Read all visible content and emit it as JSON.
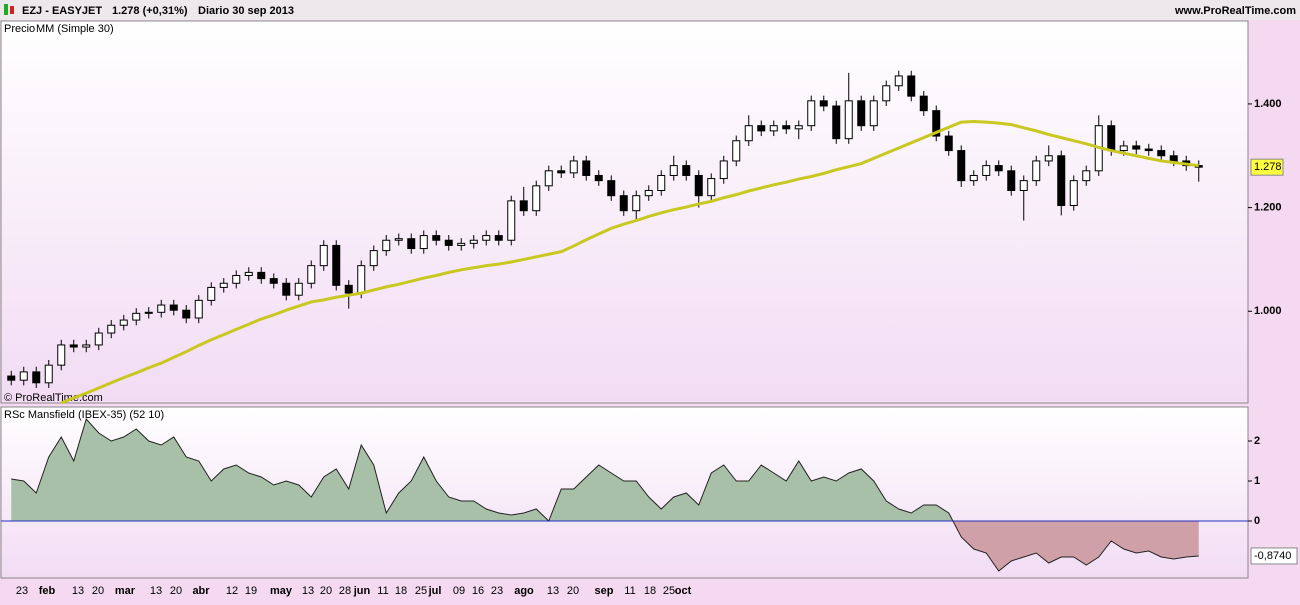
{
  "header": {
    "symbol": "EZJ - EASYJET",
    "quote": "1.278 (+0,31%)",
    "period": "Diario  30 sep 2013",
    "site": "www.ProRealTime.com",
    "copyright": "© ProRealTime.com"
  },
  "chart_data": [
    {
      "type": "candlestick",
      "legend_label": "Precio",
      "open": [
        0.875,
        0.867,
        0.883,
        0.862,
        0.896,
        0.935,
        0.931,
        0.935,
        0.958,
        0.973,
        0.983,
        0.996,
        0.998,
        1.012,
        1.002,
        0.987,
        1.021,
        1.046,
        1.054,
        1.069,
        1.075,
        1.063,
        1.054,
        1.031,
        1.054,
        1.088,
        1.127,
        1.05,
        1.035,
        1.088,
        1.117,
        1.137,
        1.14,
        1.121,
        1.146,
        1.137,
        1.127,
        1.131,
        1.137,
        1.146,
        1.137,
        1.213,
        1.194,
        1.242,
        1.271,
        1.267,
        1.29,
        1.262,
        1.252,
        1.223,
        1.194,
        1.223,
        1.233,
        1.262,
        1.281,
        1.262,
        1.223,
        1.256,
        1.29,
        1.329,
        1.358,
        1.348,
        1.358,
        1.352,
        1.358,
        1.406,
        1.396,
        1.333,
        1.406,
        1.358,
        1.406,
        1.435,
        1.454,
        1.415,
        1.387,
        1.338,
        1.31,
        1.252,
        1.262,
        1.281,
        1.271,
        1.233,
        1.252,
        1.29,
        1.3,
        1.204,
        1.252,
        1.271,
        1.358,
        1.31,
        1.319,
        1.313,
        1.31,
        1.3,
        1.29,
        1.281
      ],
      "high": [
        0.885,
        0.893,
        0.893,
        0.906,
        0.945,
        0.945,
        0.945,
        0.968,
        0.983,
        0.993,
        1.006,
        1.008,
        1.022,
        1.022,
        1.012,
        1.031,
        1.056,
        1.064,
        1.079,
        1.085,
        1.085,
        1.073,
        1.064,
        1.064,
        1.098,
        1.137,
        1.137,
        1.06,
        1.098,
        1.127,
        1.147,
        1.15,
        1.15,
        1.156,
        1.156,
        1.147,
        1.141,
        1.147,
        1.156,
        1.156,
        1.223,
        1.24,
        1.252,
        1.281,
        1.281,
        1.3,
        1.3,
        1.272,
        1.262,
        1.233,
        1.233,
        1.243,
        1.272,
        1.3,
        1.291,
        1.272,
        1.266,
        1.3,
        1.339,
        1.378,
        1.368,
        1.368,
        1.368,
        1.368,
        1.416,
        1.416,
        1.406,
        1.46,
        1.416,
        1.416,
        1.445,
        1.464,
        1.464,
        1.425,
        1.397,
        1.348,
        1.32,
        1.272,
        1.291,
        1.291,
        1.281,
        1.262,
        1.3,
        1.32,
        1.31,
        1.262,
        1.281,
        1.378,
        1.368,
        1.329,
        1.329,
        1.323,
        1.32,
        1.31,
        1.3,
        1.291
      ],
      "low": [
        0.857,
        0.857,
        0.852,
        0.852,
        0.886,
        0.921,
        0.921,
        0.925,
        0.948,
        0.963,
        0.973,
        0.986,
        0.988,
        0.992,
        0.977,
        0.977,
        1.011,
        1.036,
        1.044,
        1.059,
        1.053,
        1.044,
        1.021,
        1.021,
        1.044,
        1.078,
        1.04,
        1.005,
        1.025,
        1.078,
        1.107,
        1.127,
        1.111,
        1.111,
        1.127,
        1.117,
        1.117,
        1.121,
        1.127,
        1.127,
        1.127,
        1.184,
        1.184,
        1.232,
        1.257,
        1.257,
        1.252,
        1.242,
        1.213,
        1.184,
        1.175,
        1.213,
        1.223,
        1.252,
        1.252,
        1.2,
        1.213,
        1.246,
        1.28,
        1.319,
        1.338,
        1.338,
        1.342,
        1.332,
        1.348,
        1.386,
        1.323,
        1.323,
        1.348,
        1.348,
        1.396,
        1.425,
        1.405,
        1.377,
        1.328,
        1.3,
        1.24,
        1.242,
        1.252,
        1.261,
        1.223,
        1.175,
        1.242,
        1.28,
        1.185,
        1.194,
        1.242,
        1.261,
        1.3,
        1.3,
        1.303,
        1.3,
        1.29,
        1.28,
        1.271,
        1.25
      ],
      "close": [
        0.867,
        0.883,
        0.862,
        0.896,
        0.935,
        0.931,
        0.935,
        0.958,
        0.973,
        0.983,
        0.996,
        0.998,
        1.012,
        1.002,
        0.987,
        1.021,
        1.046,
        1.054,
        1.069,
        1.075,
        1.063,
        1.054,
        1.031,
        1.054,
        1.088,
        1.127,
        1.05,
        1.035,
        1.088,
        1.117,
        1.137,
        1.14,
        1.121,
        1.146,
        1.137,
        1.127,
        1.131,
        1.137,
        1.146,
        1.137,
        1.213,
        1.194,
        1.242,
        1.271,
        1.267,
        1.29,
        1.262,
        1.252,
        1.223,
        1.194,
        1.223,
        1.233,
        1.262,
        1.281,
        1.262,
        1.223,
        1.256,
        1.29,
        1.329,
        1.358,
        1.348,
        1.358,
        1.352,
        1.358,
        1.406,
        1.396,
        1.333,
        1.406,
        1.358,
        1.406,
        1.435,
        1.454,
        1.415,
        1.387,
        1.338,
        1.31,
        1.252,
        1.262,
        1.281,
        1.271,
        1.233,
        1.252,
        1.29,
        1.3,
        1.204,
        1.252,
        1.271,
        1.358,
        1.31,
        1.319,
        1.313,
        1.31,
        1.3,
        1.29,
        1.281,
        1.278
      ],
      "last_value": 1.278,
      "last_label": "1.278",
      "series": [
        {
          "name": "MM (Simple 30)",
          "color": "#c8c820",
          "values": [
            null,
            null,
            null,
            null,
            0.823,
            0.833,
            0.842,
            0.852,
            0.862,
            0.872,
            0.881,
            0.891,
            0.9,
            0.911,
            0.922,
            0.934,
            0.945,
            0.955,
            0.965,
            0.975,
            0.985,
            0.993,
            1.002,
            1.01,
            1.018,
            1.022,
            1.027,
            1.031,
            1.035,
            1.041,
            1.047,
            1.052,
            1.058,
            1.064,
            1.069,
            1.075,
            1.08,
            1.084,
            1.088,
            1.091,
            1.095,
            1.1,
            1.105,
            1.11,
            1.115,
            1.126,
            1.138,
            1.149,
            1.16,
            1.168,
            1.175,
            1.183,
            1.19,
            1.196,
            1.201,
            1.207,
            1.212,
            1.219,
            1.225,
            1.232,
            1.238,
            1.244,
            1.249,
            1.255,
            1.26,
            1.266,
            1.273,
            1.279,
            1.285,
            1.295,
            1.305,
            1.315,
            1.325,
            1.335,
            1.345,
            1.355,
            1.365,
            1.366,
            1.365,
            1.363,
            1.36,
            1.354,
            1.348,
            1.341,
            1.335,
            1.329,
            1.323,
            1.316,
            1.31,
            1.305,
            1.3,
            1.295,
            1.29,
            1.287,
            1.284,
            1.281
          ]
        }
      ],
      "ylim": [
        0.823,
        1.56
      ],
      "yticks": [
        {
          "value": 1.0,
          "label": "1.000"
        },
        {
          "value": 1.2,
          "label": "1.200"
        },
        {
          "value": 1.4,
          "label": "1.400"
        }
      ]
    },
    {
      "type": "area",
      "title": "RSc Mansfield (IBEX-35) (52 10)",
      "series": [
        {
          "name": "RSc Mansfield",
          "color": "#a8c0a8",
          "negative_color": "#d0a0a8",
          "values": [
            1.05,
            1.0,
            0.7,
            1.6,
            2.1,
            1.5,
            2.55,
            2.2,
            2.0,
            2.1,
            2.3,
            2.0,
            1.9,
            2.1,
            1.6,
            1.5,
            1.0,
            1.3,
            1.4,
            1.2,
            1.1,
            0.9,
            1.0,
            0.9,
            0.6,
            1.1,
            1.3,
            0.8,
            1.9,
            1.4,
            0.2,
            0.7,
            1.0,
            1.6,
            1.0,
            0.6,
            0.5,
            0.5,
            0.3,
            0.2,
            0.15,
            0.2,
            0.3,
            0.0,
            0.8,
            0.8,
            1.1,
            1.4,
            1.2,
            1.0,
            1.0,
            0.6,
            0.3,
            0.6,
            0.7,
            0.4,
            1.2,
            1.4,
            1.0,
            1.0,
            1.4,
            1.2,
            1.0,
            1.5,
            1.0,
            1.1,
            1.0,
            1.2,
            1.3,
            1.0,
            0.5,
            0.3,
            0.2,
            0.4,
            0.4,
            0.2,
            -0.4,
            -0.7,
            -0.8,
            -1.25,
            -1.0,
            -0.9,
            -0.8,
            -1.05,
            -0.9,
            -0.9,
            -1.1,
            -0.9,
            -0.5,
            -0.7,
            -0.8,
            -0.75,
            -0.9,
            -0.95,
            -0.9,
            -0.874
          ]
        }
      ],
      "last_value": -0.874,
      "last_label": "-0,8740",
      "ylim": [
        -1.425,
        2.85
      ],
      "yticks": [
        0,
        1,
        2
      ],
      "x_labels": [
        "23",
        "feb",
        "13",
        "20",
        "mar",
        "13",
        "20",
        "abr",
        "12",
        "19",
        "may",
        "13",
        "20",
        "28",
        "jun",
        "11",
        "18",
        "25",
        "jul",
        "09",
        "16",
        "23",
        "ago",
        "13",
        "20",
        "sep",
        "11",
        "18",
        "25",
        "oct"
      ]
    }
  ]
}
